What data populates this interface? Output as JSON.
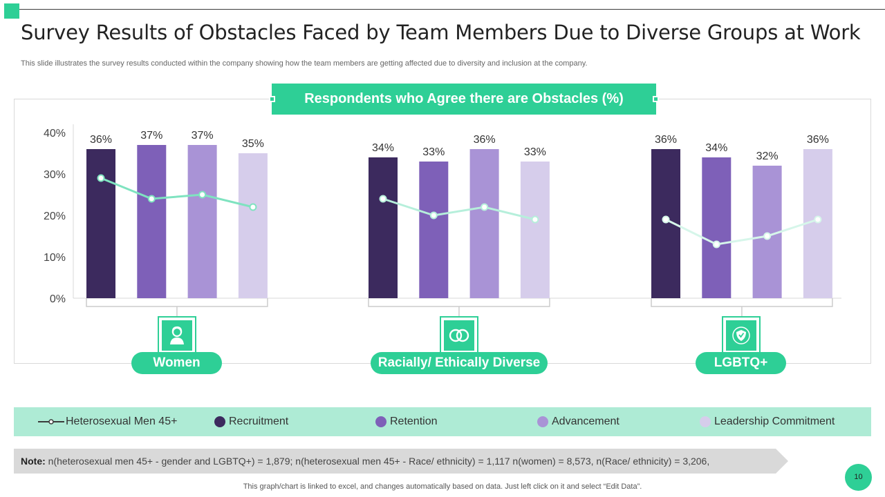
{
  "slide": {
    "title": "Survey Results of Obstacles Faced by Team Members Due to Diverse Groups at Work",
    "subtitle": "This slide illustrates the survey results conducted within the company showing how the team members are getting affected due to  diversity and inclusion at the company.",
    "note_label": "Note:",
    "note_text": " n(heterosexual men 45+ - gender and LGBTQ+) = 1,879; n(heterosexual men 45+ - Race/ ethnicity) = 1,117 n(women) = 8,573, n(Race/ ethnicity) = 3,206,",
    "footer": "This graph/chart is linked to excel,  and changes automatically based on data. Just left click on it and select “Edit Data”.",
    "page_number": "10"
  },
  "colors": {
    "accent": "#2ecf96",
    "recruitment": "#3c2a5e",
    "retention": "#7e60b8",
    "advancement": "#a993d6",
    "leadership": "#d6cdeb",
    "men_line": "#7fe3c0"
  },
  "icons": {
    "women": "woman-icon",
    "racial": "interlocked-rings-icon",
    "lgbtq": "shield-icon"
  },
  "chart_data": {
    "type": "bar",
    "title": "Respondents who Agree there are Obstacles (%)",
    "categories": [
      "Women",
      "Racially/ Ethically Diverse",
      "LGBTQ+"
    ],
    "ylim": [
      0,
      40
    ],
    "yticks": [
      "0%",
      "10%",
      "20%",
      "30%",
      "40%"
    ],
    "series": [
      {
        "name": "Recruitment",
        "values": [
          36,
          34,
          36
        ]
      },
      {
        "name": "Retention",
        "values": [
          37,
          33,
          34
        ]
      },
      {
        "name": "Advancement",
        "values": [
          37,
          36,
          32
        ]
      },
      {
        "name": "Leadership Commitment",
        "values": [
          35,
          33,
          36
        ]
      }
    ],
    "line_series": {
      "name": "Heterosexual Men 45+",
      "values": [
        [
          29,
          24,
          25,
          22
        ],
        [
          24,
          20,
          22,
          19
        ],
        [
          19,
          13,
          15,
          19
        ]
      ]
    },
    "legend_position": "bottom"
  }
}
